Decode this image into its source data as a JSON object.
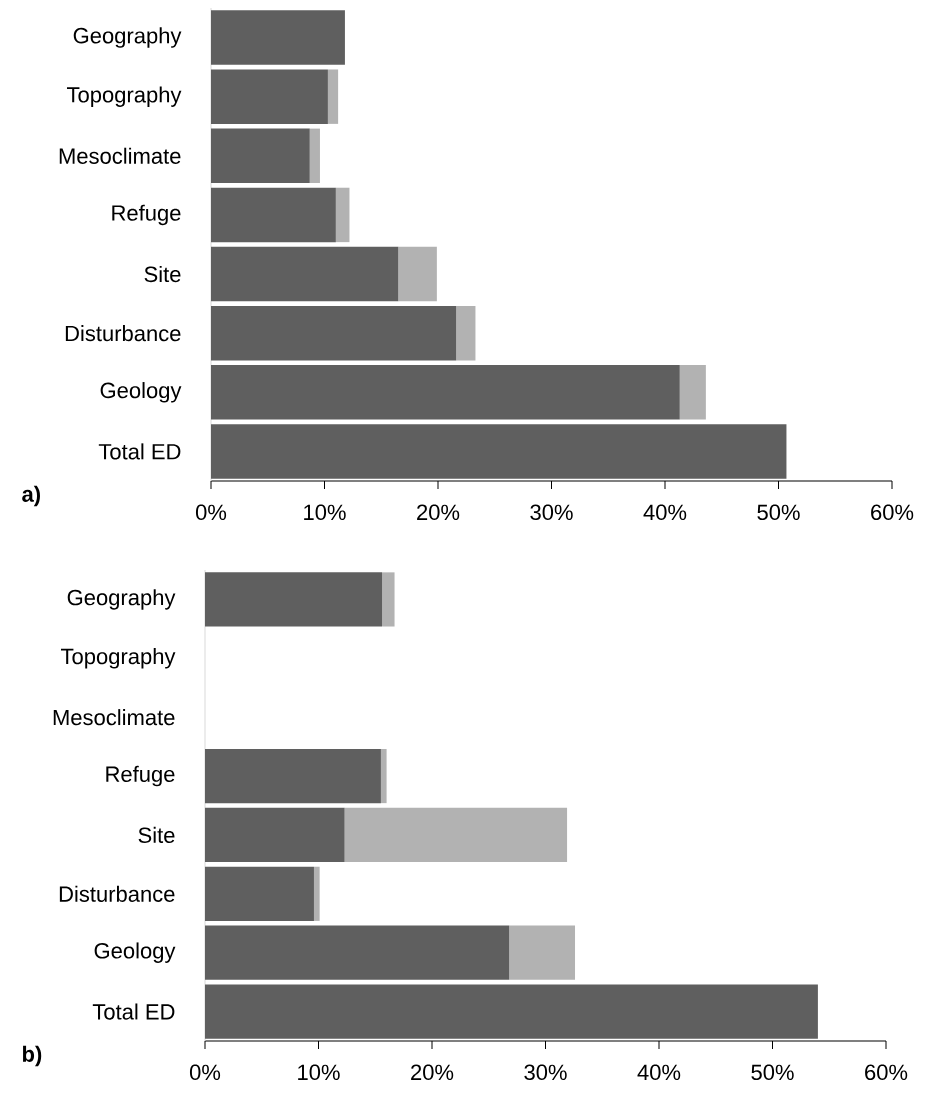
{
  "chart_data": [
    {
      "type": "bar",
      "orientation": "horizontal",
      "stacked": true,
      "categories": [
        "Geography",
        "Topography",
        "Mesoclimate",
        "Refuge",
        "Site",
        "Disturbance",
        "Geology",
        "Total ED"
      ],
      "series": [
        {
          "color": "#5f5f5f",
          "values": [
            11.8,
            10.3,
            8.7,
            11.0,
            16.5,
            21.6,
            41.3,
            50.7
          ]
        },
        {
          "color": "#b2b2b2",
          "values": [
            0,
            0.9,
            0.9,
            1.2,
            3.4,
            1.7,
            2.3,
            0
          ]
        }
      ],
      "xlim": [
        0,
        60
      ],
      "xticks": [
        {
          "value": 0,
          "label": "0%"
        },
        {
          "value": 10,
          "label": "10%"
        },
        {
          "value": 20,
          "label": "20%"
        },
        {
          "value": 30,
          "label": "30%"
        },
        {
          "value": 40,
          "label": "40%"
        },
        {
          "value": 50,
          "label": "50%"
        },
        {
          "value": 60,
          "label": "60%"
        }
      ],
      "annotations": [
        "a)"
      ]
    },
    {
      "type": "bar",
      "orientation": "horizontal",
      "stacked": true,
      "categories": [
        "Geography",
        "Topography",
        "Mesoclimate",
        "Refuge",
        "Site",
        "Disturbance",
        "Geology",
        "Total ED"
      ],
      "series": [
        {
          "color": "#5f5f5f",
          "values": [
            15.6,
            null,
            null,
            15.5,
            12.3,
            9.6,
            26.8,
            54.0
          ]
        },
        {
          "color": "#b2b2b2",
          "values": [
            1.1,
            null,
            null,
            0.5,
            19.6,
            0.5,
            5.8,
            0
          ]
        }
      ],
      "xlim": [
        0,
        60
      ],
      "xticks": [
        {
          "value": 0,
          "label": "0%"
        },
        {
          "value": 10,
          "label": "10%"
        },
        {
          "value": 20,
          "label": "20%"
        },
        {
          "value": 30,
          "label": "30%"
        },
        {
          "value": 40,
          "label": "40%"
        },
        {
          "value": 50,
          "label": "50%"
        },
        {
          "value": 60,
          "label": "60%"
        }
      ],
      "annotations": [
        "b)"
      ]
    }
  ]
}
